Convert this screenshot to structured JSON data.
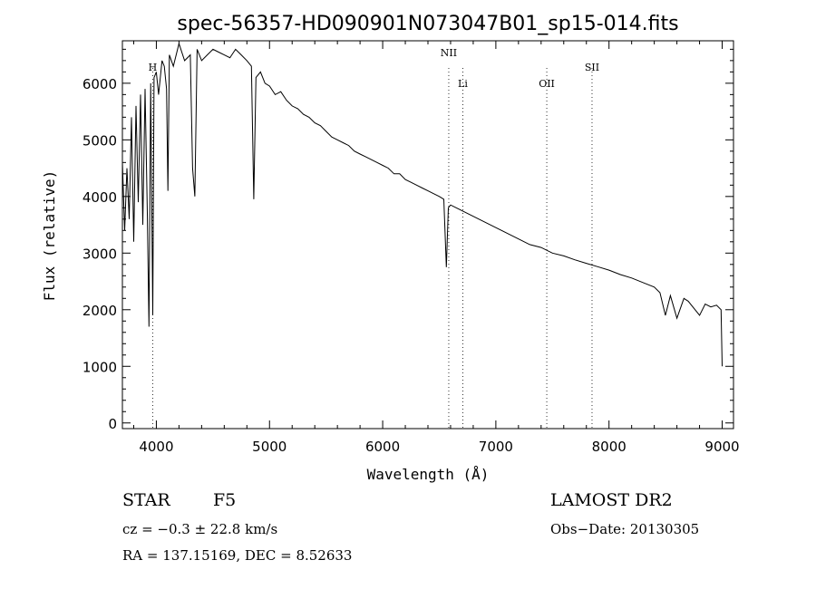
{
  "chart_data": {
    "type": "line",
    "title": "spec-56357-HD090901N073047B01_sp15-014.fits",
    "xlabel": "Wavelength (Å)",
    "ylabel": "Flux (relative)",
    "xlim": [
      3700,
      9100
    ],
    "ylim": [
      -100,
      6750
    ],
    "x_ticks": [
      4000,
      5000,
      6000,
      7000,
      8000,
      9000
    ],
    "y_ticks": [
      0,
      1000,
      2000,
      3000,
      4000,
      5000,
      6000
    ],
    "grid": false,
    "series": [
      {
        "x": [
          3700,
          3720,
          3740,
          3760,
          3780,
          3800,
          3820,
          3840,
          3860,
          3880,
          3900,
          3920,
          3935,
          3950,
          3968,
          3980,
          4000,
          4020,
          4050,
          4070,
          4090,
          4102,
          4115,
          4150,
          4200,
          4250,
          4300,
          4320,
          4340,
          4360,
          4400,
          4450,
          4500,
          4550,
          4600,
          4650,
          4700,
          4750,
          4800,
          4840,
          4861,
          4880,
          4920,
          4960,
          5000,
          5050,
          5100,
          5150,
          5200,
          5250,
          5300,
          5350,
          5400,
          5450,
          5500,
          5550,
          5600,
          5650,
          5700,
          5750,
          5800,
          5850,
          5900,
          5950,
          6000,
          6050,
          6100,
          6150,
          6200,
          6250,
          6300,
          6350,
          6400,
          6450,
          6500,
          6540,
          6563,
          6580,
          6600,
          6650,
          6700,
          6800,
          6900,
          7000,
          7100,
          7200,
          7300,
          7400,
          7500,
          7600,
          7700,
          7800,
          7900,
          8000,
          8100,
          8200,
          8300,
          8400,
          8450,
          8498,
          8542,
          8600,
          8662,
          8700,
          8800,
          8850,
          8900,
          8950,
          8990,
          9000
        ],
        "y": [
          4600,
          3400,
          4500,
          3600,
          5400,
          3200,
          5600,
          3900,
          5800,
          3500,
          5900,
          3700,
          1700,
          6000,
          1900,
          6100,
          6200,
          5800,
          6400,
          6300,
          5900,
          4100,
          6500,
          6300,
          6700,
          6400,
          6500,
          4500,
          4000,
          6600,
          6400,
          6500,
          6600,
          6550,
          6500,
          6450,
          6600,
          6500,
          6400,
          6300,
          3950,
          6100,
          6200,
          6000,
          5950,
          5800,
          5850,
          5700,
          5600,
          5550,
          5450,
          5400,
          5300,
          5250,
          5150,
          5050,
          5000,
          4950,
          4900,
          4800,
          4750,
          4700,
          4650,
          4600,
          4550,
          4500,
          4400,
          4400,
          4300,
          4250,
          4200,
          4150,
          4100,
          4050,
          4000,
          3950,
          2750,
          3800,
          3850,
          3800,
          3750,
          3650,
          3550,
          3450,
          3350,
          3250,
          3150,
          3100,
          3000,
          2950,
          2880,
          2820,
          2760,
          2700,
          2620,
          2560,
          2480,
          2400,
          2300,
          1900,
          2250,
          1850,
          2200,
          2150,
          1900,
          2100,
          2050,
          2080,
          2000,
          1000
        ]
      }
    ],
    "line_markers": [
      {
        "label": "H",
        "x": 3968
      },
      {
        "label": "NII",
        "x": 6584
      },
      {
        "label": "Li",
        "x": 6708
      },
      {
        "label": "OII",
        "x": 7450
      },
      {
        "label": "SII",
        "x": 7850
      }
    ]
  },
  "info": {
    "class_label": "STAR",
    "subclass": "F5",
    "survey": "LAMOST DR2",
    "cz": "cz = −0.3 ± 22.8 km/s",
    "obs_date": "Obs−Date: 20130305",
    "coords": "RA = 137.15169, DEC =   8.52633"
  }
}
